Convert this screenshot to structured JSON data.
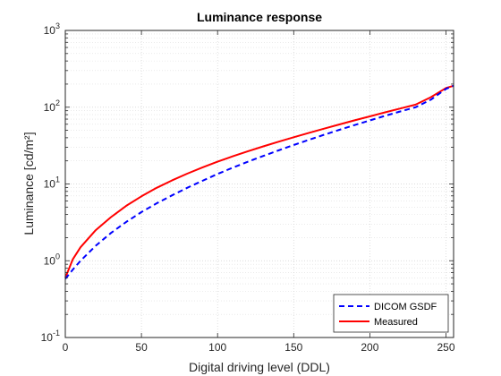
{
  "chart_data": {
    "type": "line",
    "title": "Luminance response",
    "xlabel": "Digital driving level (DDL)",
    "ylabel": "Luminance [cd/m²]",
    "xlim": [
      0,
      255
    ],
    "ylim": [
      0.1,
      1000
    ],
    "yscale": "log",
    "grid": true,
    "minor_grid": true,
    "legend_position": "bottom-right",
    "x_ticks": [
      "0",
      "50",
      "100",
      "150",
      "200",
      "250"
    ],
    "y_ticks": [
      {
        "base": "10",
        "exp": "-1"
      },
      {
        "base": "10",
        "exp": "0"
      },
      {
        "base": "10",
        "exp": "1"
      },
      {
        "base": "10",
        "exp": "2"
      },
      {
        "base": "10",
        "exp": "3"
      }
    ],
    "x": [
      0,
      5,
      10,
      20,
      30,
      40,
      50,
      60,
      70,
      80,
      90,
      100,
      110,
      120,
      130,
      140,
      150,
      160,
      170,
      180,
      190,
      200,
      210,
      220,
      230,
      240,
      250,
      255
    ],
    "series": [
      {
        "name": "DICOM GSDF",
        "color": "#0000ff",
        "dash": "dashed",
        "values": [
          0.58,
          0.77,
          1.0,
          1.57,
          2.3,
          3.2,
          4.3,
          5.6,
          7.1,
          8.9,
          11.0,
          13.5,
          16.3,
          19.5,
          23.2,
          27.4,
          32.2,
          37.6,
          43.8,
          50.7,
          58.5,
          67.3,
          77.1,
          88.0,
          100.0,
          125.0,
          173.0,
          190.0
        ]
      },
      {
        "name": "Measured",
        "color": "#ff0000",
        "dash": "solid",
        "values": [
          0.6,
          1.05,
          1.5,
          2.5,
          3.7,
          5.2,
          6.9,
          8.9,
          11.1,
          13.6,
          16.4,
          19.5,
          22.9,
          26.7,
          30.9,
          35.5,
          40.6,
          46.3,
          52.6,
          59.6,
          67.4,
          76.0,
          85.6,
          96.3,
          108.0,
          135.0,
          178.0,
          190.0
        ]
      }
    ]
  }
}
